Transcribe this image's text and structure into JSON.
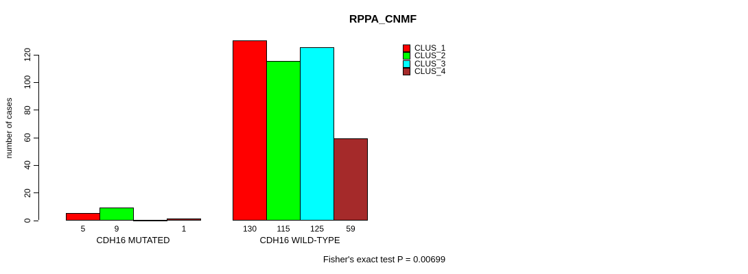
{
  "chart_data": {
    "type": "bar",
    "title": "RPPA_CNMF",
    "xlabel": "",
    "ylabel": "number of cases",
    "categories": [
      "CDH16 MUTATED",
      "CDH16 WILD-TYPE"
    ],
    "series": [
      {
        "name": "CLUS_1",
        "color": "#FF0000",
        "values": [
          5,
          130
        ]
      },
      {
        "name": "CLUS_2",
        "color": "#00FF00",
        "values": [
          9,
          115
        ]
      },
      {
        "name": "CLUS_3",
        "color": "#00FFFF",
        "values": [
          0,
          125
        ]
      },
      {
        "name": "CLUS_4",
        "color": "#A52A2A",
        "values": [
          1,
          59
        ]
      }
    ],
    "bar_labels": [
      [
        "5",
        "9",
        "",
        "1"
      ],
      [
        "130",
        "115",
        "125",
        "59"
      ]
    ],
    "yticks": [
      0,
      20,
      40,
      60,
      80,
      100,
      120
    ],
    "ylim": [
      0,
      130
    ],
    "grid": false,
    "legend_position": "top-right",
    "annotation": "Fisher's exact test P = 0.00699"
  },
  "colors": {
    "background": "#FFFFFF",
    "axis": "#000000",
    "text": "#000000",
    "bar_border": "#000000"
  }
}
